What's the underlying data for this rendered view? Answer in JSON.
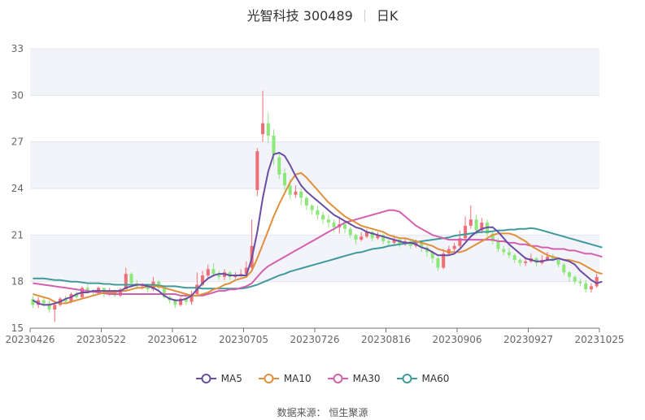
{
  "header": {
    "company": "光智科技",
    "code": "300489",
    "period": "日K"
  },
  "source": {
    "label": "数据来源：",
    "value": "恒生聚源"
  },
  "colors": {
    "up": "#ef6f78",
    "down": "#8ee77a",
    "ma5": "#6a4ea3",
    "ma10": "#e08f3c",
    "ma30": "#d45fb0",
    "ma60": "#3f9a9c",
    "band": "#f3f4fa",
    "grid": "#e3e6ef",
    "axis": "#666666"
  },
  "chart_data": {
    "type": "candlestick",
    "ylim": [
      15,
      33
    ],
    "yticks": [
      15,
      18,
      21,
      24,
      27,
      30,
      33
    ],
    "xtick_labels": [
      "20230426",
      "20230522",
      "20230612",
      "20230705",
      "20230726",
      "20230816",
      "20230906",
      "20230927",
      "20231025"
    ],
    "legend": [
      "MA5",
      "MA10",
      "MA30",
      "MA60"
    ],
    "legend_position": "bottom",
    "candles": [
      [
        16.9,
        16.5,
        17.1,
        16.3
      ],
      [
        16.5,
        16.8,
        17.0,
        16.3
      ],
      [
        16.8,
        16.6,
        17.0,
        16.4
      ],
      [
        16.6,
        16.2,
        16.8,
        16.0
      ],
      [
        16.2,
        16.5,
        16.6,
        15.4
      ],
      [
        16.5,
        16.9,
        17.0,
        16.4
      ],
      [
        16.9,
        16.7,
        17.1,
        16.6
      ],
      [
        16.7,
        17.2,
        17.3,
        16.6
      ],
      [
        17.2,
        17.0,
        17.4,
        16.9
      ],
      [
        17.0,
        17.6,
        17.7,
        16.9
      ],
      [
        17.6,
        17.4,
        17.8,
        17.3
      ],
      [
        17.4,
        17.3,
        17.5,
        17.1
      ],
      [
        17.3,
        17.6,
        17.7,
        17.2
      ],
      [
        17.6,
        17.2,
        17.6,
        17.0
      ],
      [
        17.2,
        17.4,
        17.6,
        17.1
      ],
      [
        17.4,
        17.1,
        17.5,
        17.0
      ],
      [
        17.1,
        17.5,
        17.6,
        17.0
      ],
      [
        17.5,
        18.5,
        18.9,
        17.5
      ],
      [
        18.5,
        17.9,
        18.6,
        17.7
      ],
      [
        17.9,
        17.7,
        18.1,
        17.5
      ],
      [
        17.7,
        17.8,
        17.9,
        17.5
      ],
      [
        17.8,
        17.5,
        17.9,
        17.3
      ],
      [
        17.5,
        18.0,
        18.3,
        17.4
      ],
      [
        18.0,
        17.6,
        18.1,
        17.4
      ],
      [
        17.6,
        17.0,
        17.7,
        16.9
      ],
      [
        17.0,
        16.8,
        17.1,
        16.6
      ],
      [
        16.8,
        16.5,
        16.9,
        16.3
      ],
      [
        16.5,
        16.9,
        17.0,
        16.4
      ],
      [
        16.9,
        16.7,
        17.1,
        16.5
      ],
      [
        16.7,
        17.2,
        17.4,
        16.5
      ],
      [
        17.2,
        17.8,
        18.6,
        17.1
      ],
      [
        17.8,
        18.4,
        18.7,
        17.7
      ],
      [
        18.4,
        18.8,
        19.1,
        18.2
      ],
      [
        18.8,
        18.5,
        19.2,
        18.3
      ],
      [
        18.5,
        18.3,
        18.7,
        18.1
      ],
      [
        18.3,
        18.6,
        18.8,
        18.1
      ],
      [
        18.6,
        18.3,
        18.7,
        18.1
      ],
      [
        18.3,
        18.4,
        18.6,
        18.2
      ],
      [
        18.4,
        18.5,
        18.8,
        18.3
      ],
      [
        18.5,
        18.9,
        19.3,
        18.4
      ],
      [
        18.9,
        20.3,
        22.0,
        18.8
      ],
      [
        23.9,
        26.4,
        26.6,
        23.5
      ],
      [
        27.5,
        28.2,
        30.3,
        27.0
      ],
      [
        28.2,
        27.4,
        28.9,
        26.9
      ],
      [
        27.4,
        26.2,
        27.8,
        25.5
      ],
      [
        26.0,
        24.9,
        26.3,
        24.6
      ],
      [
        25.0,
        24.2,
        25.3,
        23.9
      ],
      [
        24.2,
        23.6,
        24.6,
        23.3
      ],
      [
        23.6,
        23.8,
        24.2,
        23.4
      ],
      [
        23.8,
        23.4,
        24.0,
        22.9
      ],
      [
        23.4,
        22.9,
        23.5,
        22.6
      ],
      [
        22.9,
        22.6,
        23.0,
        22.3
      ],
      [
        22.6,
        22.3,
        22.9,
        22.0
      ],
      [
        22.3,
        22.0,
        22.5,
        21.7
      ],
      [
        22.0,
        21.8,
        22.3,
        21.5
      ],
      [
        21.8,
        21.5,
        22.0,
        21.2
      ],
      [
        21.5,
        21.7,
        22.2,
        21.1
      ],
      [
        21.7,
        21.4,
        21.9,
        21.1
      ],
      [
        21.4,
        21.0,
        21.5,
        20.8
      ],
      [
        21.0,
        20.7,
        21.1,
        20.4
      ],
      [
        20.7,
        20.9,
        21.2,
        20.6
      ],
      [
        20.9,
        21.2,
        21.4,
        20.8
      ],
      [
        21.2,
        20.8,
        21.3,
        20.6
      ],
      [
        20.8,
        21.0,
        21.2,
        20.7
      ],
      [
        21.0,
        20.6,
        21.1,
        20.4
      ],
      [
        20.6,
        20.5,
        20.8,
        20.3
      ],
      [
        20.5,
        20.7,
        20.9,
        20.4
      ],
      [
        20.7,
        20.4,
        20.8,
        20.2
      ],
      [
        20.4,
        20.6,
        20.8,
        20.3
      ],
      [
        20.6,
        20.3,
        20.7,
        20.1
      ],
      [
        20.3,
        20.5,
        20.7,
        20.2
      ],
      [
        20.5,
        20.2,
        20.6,
        19.9
      ],
      [
        20.2,
        19.9,
        20.3,
        19.6
      ],
      [
        19.9,
        19.5,
        20.0,
        19.2
      ],
      [
        19.5,
        18.9,
        19.6,
        18.7
      ],
      [
        18.9,
        19.8,
        20.1,
        18.8
      ],
      [
        19.8,
        20.1,
        20.3,
        19.7
      ],
      [
        20.1,
        20.3,
        20.5,
        19.9
      ],
      [
        20.3,
        20.8,
        21.3,
        20.2
      ],
      [
        20.8,
        21.6,
        22.2,
        20.6
      ],
      [
        21.6,
        22.0,
        22.9,
        21.4
      ],
      [
        22.0,
        21.3,
        22.3,
        21.0
      ],
      [
        21.3,
        21.8,
        22.1,
        21.1
      ],
      [
        21.8,
        21.1,
        22.0,
        20.9
      ],
      [
        21.1,
        20.6,
        21.3,
        20.4
      ],
      [
        20.6,
        20.1,
        20.8,
        19.9
      ],
      [
        20.1,
        19.9,
        20.3,
        19.7
      ],
      [
        19.9,
        19.7,
        20.2,
        19.5
      ],
      [
        19.7,
        19.4,
        19.8,
        19.2
      ],
      [
        19.4,
        19.2,
        19.5,
        19.0
      ],
      [
        19.2,
        19.3,
        19.6,
        19.0
      ],
      [
        19.3,
        19.5,
        19.8,
        19.2
      ],
      [
        19.5,
        19.2,
        19.6,
        19.0
      ],
      [
        19.2,
        19.4,
        19.7,
        19.1
      ],
      [
        19.4,
        19.6,
        19.9,
        19.3
      ],
      [
        19.6,
        19.4,
        19.8,
        19.3
      ],
      [
        19.4,
        19.1,
        19.5,
        18.9
      ],
      [
        19.1,
        18.6,
        19.2,
        18.4
      ],
      [
        18.6,
        18.3,
        18.7,
        18.0
      ],
      [
        18.3,
        18.0,
        18.4,
        17.8
      ],
      [
        18.0,
        17.9,
        18.2,
        17.7
      ],
      [
        17.9,
        17.5,
        18.1,
        17.3
      ],
      [
        17.5,
        17.7,
        17.9,
        17.3
      ],
      [
        17.7,
        18.3,
        18.5,
        17.6
      ]
    ],
    "ma5": [
      16.8,
      16.6,
      16.5,
      16.5,
      16.6,
      16.7,
      16.9,
      17.0,
      17.2,
      17.3,
      17.3,
      17.4,
      17.4,
      17.4,
      17.4,
      17.4,
      17.4,
      17.6,
      17.7,
      17.8,
      17.8,
      17.7,
      17.6,
      17.4,
      17.1,
      16.9,
      16.8,
      16.8,
      16.9,
      17.1,
      17.5,
      17.9,
      18.2,
      18.4,
      18.5,
      18.5,
      18.4,
      18.4,
      18.4,
      18.4,
      19.5,
      21.2,
      23.4,
      25.1,
      26.2,
      26.3,
      26.1,
      25.5,
      24.8,
      24.2,
      23.8,
      23.5,
      23.2,
      22.9,
      22.6,
      22.3,
      22.1,
      21.9,
      21.7,
      21.5,
      21.4,
      21.2,
      21.1,
      21.0,
      20.9,
      20.8,
      20.7,
      20.6,
      20.5,
      20.5,
      20.4,
      20.2,
      20.1,
      19.9,
      19.7,
      19.7,
      19.7,
      19.8,
      20.1,
      20.5,
      20.9,
      21.2,
      21.4,
      21.5,
      21.5,
      21.2,
      20.8,
      20.4,
      20.1,
      19.8,
      19.5,
      19.4,
      19.3,
      19.3,
      19.4,
      19.4,
      19.5,
      19.4,
      19.3,
      19.1,
      18.7,
      18.4,
      18.1,
      17.9,
      18.0
    ],
    "ma10": [
      17.2,
      17.1,
      17.0,
      16.9,
      16.7,
      16.6,
      16.6,
      16.7,
      16.8,
      16.9,
      17.0,
      17.1,
      17.2,
      17.3,
      17.3,
      17.3,
      17.4,
      17.4,
      17.5,
      17.6,
      17.6,
      17.7,
      17.7,
      17.7,
      17.6,
      17.5,
      17.4,
      17.3,
      17.2,
      17.1,
      17.1,
      17.2,
      17.3,
      17.5,
      17.6,
      17.8,
      17.9,
      18.1,
      18.2,
      18.3,
      18.7,
      19.5,
      20.4,
      21.3,
      22.2,
      23.0,
      23.7,
      24.4,
      24.9,
      25.0,
      24.7,
      24.3,
      23.9,
      23.5,
      23.1,
      22.8,
      22.5,
      22.2,
      22.0,
      21.8,
      21.6,
      21.5,
      21.4,
      21.3,
      21.2,
      21.0,
      20.9,
      20.8,
      20.8,
      20.7,
      20.6,
      20.5,
      20.4,
      20.3,
      20.1,
      20.0,
      19.9,
      19.9,
      19.9,
      20.0,
      20.2,
      20.4,
      20.6,
      20.8,
      21.0,
      21.1,
      21.1,
      21.1,
      21.0,
      20.8,
      20.6,
      20.3,
      20.1,
      19.9,
      19.7,
      19.6,
      19.5,
      19.4,
      19.4,
      19.3,
      19.2,
      19.0,
      18.8,
      18.6,
      18.5
    ],
    "ma30": [
      17.9,
      17.85,
      17.8,
      17.75,
      17.7,
      17.65,
      17.6,
      17.55,
      17.5,
      17.45,
      17.4,
      17.35,
      17.3,
      17.25,
      17.2,
      17.2,
      17.2,
      17.2,
      17.2,
      17.2,
      17.2,
      17.2,
      17.2,
      17.2,
      17.2,
      17.2,
      17.2,
      17.1,
      17.1,
      17.1,
      17.1,
      17.1,
      17.2,
      17.3,
      17.4,
      17.4,
      17.5,
      17.5,
      17.6,
      17.7,
      17.9,
      18.3,
      18.7,
      19.0,
      19.2,
      19.4,
      19.6,
      19.8,
      20.0,
      20.2,
      20.4,
      20.6,
      20.8,
      21.0,
      21.2,
      21.4,
      21.6,
      21.8,
      21.9,
      22.0,
      22.1,
      22.2,
      22.3,
      22.4,
      22.5,
      22.6,
      22.6,
      22.5,
      22.2,
      21.9,
      21.6,
      21.4,
      21.2,
      21.0,
      20.9,
      20.8,
      20.7,
      20.7,
      20.7,
      20.7,
      20.7,
      20.7,
      20.7,
      20.7,
      20.7,
      20.6,
      20.6,
      20.5,
      20.5,
      20.4,
      20.4,
      20.3,
      20.3,
      20.2,
      20.2,
      20.1,
      20.1,
      20.1,
      20.0,
      20.0,
      19.9,
      19.8,
      19.8,
      19.7,
      19.6
    ],
    "ma60": [
      18.2,
      18.2,
      18.2,
      18.15,
      18.1,
      18.1,
      18.05,
      18.0,
      18.0,
      17.95,
      17.9,
      17.9,
      17.9,
      17.85,
      17.85,
      17.8,
      17.8,
      17.8,
      17.8,
      17.8,
      17.8,
      17.8,
      17.8,
      17.75,
      17.7,
      17.7,
      17.7,
      17.65,
      17.6,
      17.6,
      17.6,
      17.55,
      17.55,
      17.55,
      17.55,
      17.55,
      17.55,
      17.55,
      17.55,
      17.6,
      17.7,
      17.8,
      17.95,
      18.1,
      18.25,
      18.4,
      18.5,
      18.65,
      18.75,
      18.85,
      18.95,
      19.05,
      19.15,
      19.25,
      19.35,
      19.45,
      19.55,
      19.65,
      19.75,
      19.85,
      19.9,
      20.0,
      20.1,
      20.15,
      20.2,
      20.3,
      20.35,
      20.4,
      20.45,
      20.5,
      20.55,
      20.6,
      20.65,
      20.7,
      20.75,
      20.8,
      20.85,
      20.95,
      21.0,
      21.05,
      21.1,
      21.15,
      21.2,
      21.2,
      21.25,
      21.3,
      21.3,
      21.35,
      21.35,
      21.4,
      21.4,
      21.45,
      21.4,
      21.3,
      21.2,
      21.1,
      21.0,
      20.9,
      20.8,
      20.7,
      20.6,
      20.5,
      20.4,
      20.3,
      20.2
    ]
  }
}
